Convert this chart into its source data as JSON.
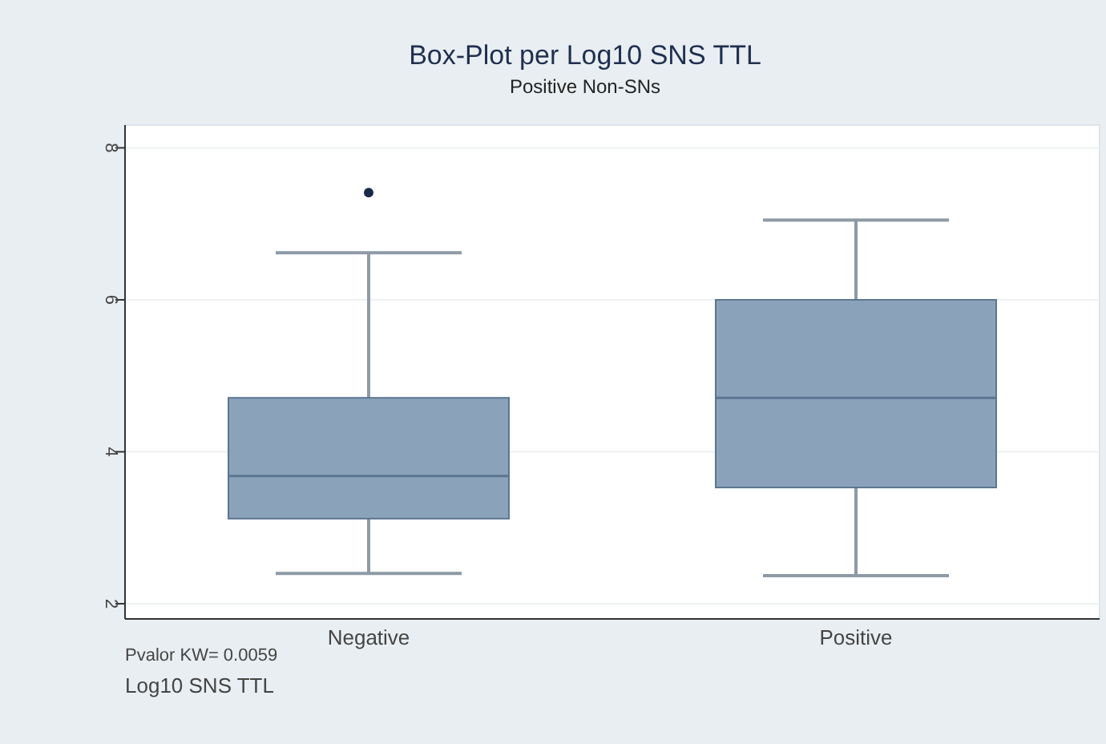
{
  "chart_data": {
    "type": "box",
    "title": "Box-Plot per Log10 SNS TTL",
    "subtitle": "Positive Non-SNs",
    "categories": [
      "Negative",
      "Positive"
    ],
    "color": "#8ba3ba",
    "boxes": [
      {
        "low": 2.4,
        "q1": 3.12,
        "median": 3.68,
        "q3": 4.71,
        "high": 6.62,
        "outliers": [
          7.41
        ]
      },
      {
        "low": 2.37,
        "q1": 3.53,
        "median": 4.71,
        "q3": 6.0,
        "high": 7.05
      }
    ],
    "ylim": [
      1.8,
      8.3
    ],
    "yticks": [
      2,
      4,
      6,
      8
    ],
    "grid": "y",
    "annotations": [
      "Pvalor KW=  0.0059",
      "Log10 SNS TTL"
    ]
  }
}
